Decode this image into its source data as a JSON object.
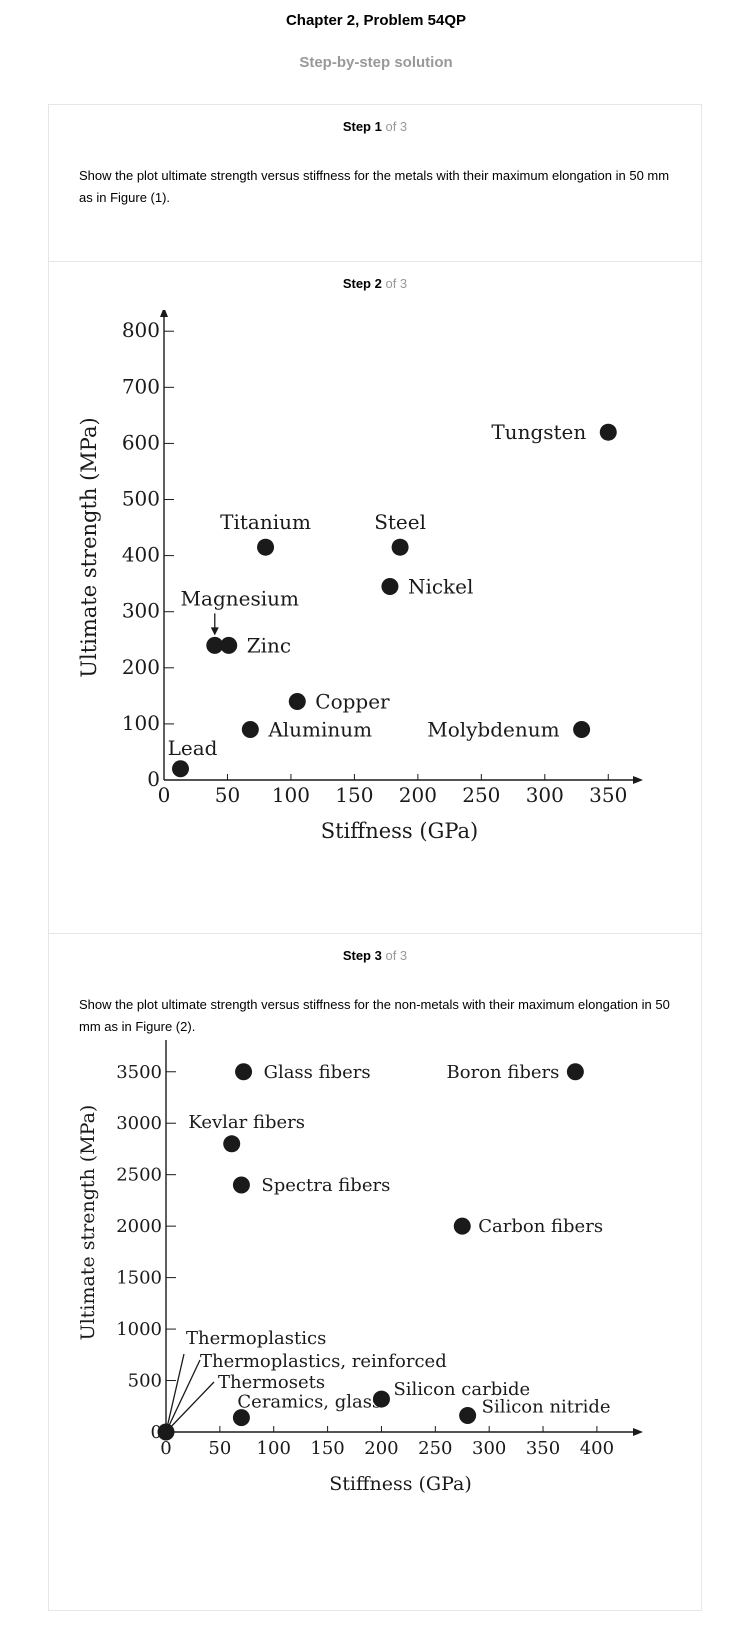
{
  "header": {
    "title": "Chapter 2, Problem 54QP",
    "subtitle": "Step-by-step solution"
  },
  "steps": [
    {
      "label": "Step 1",
      "of": "of 3",
      "text": "Show the plot ultimate strength versus stiffness for the metals with their maximum elongation in 50 mm as in Figure (1)."
    },
    {
      "label": "Step 2",
      "of": "of 3"
    },
    {
      "label": "Step 3",
      "of": "of 3",
      "text": "Show the plot ultimate strength versus stiffness for the non-metals with their maximum elongation in 50 mm as in Figure (2)."
    }
  ],
  "chart_data": [
    {
      "type": "scatter",
      "title": "",
      "xlabel": "Stiffness (GPa)",
      "ylabel": "Ultimate strength (MPa)",
      "xlim": [
        0,
        375
      ],
      "ylim": [
        0,
        820
      ],
      "xticks": [
        0,
        50,
        100,
        150,
        200,
        250,
        300,
        350
      ],
      "yticks": [
        0,
        100,
        200,
        300,
        400,
        500,
        600,
        700,
        800
      ],
      "grid": false,
      "points": [
        {
          "label": "Lead",
          "x": 13,
          "y": 20
        },
        {
          "label": "Aluminum",
          "x": 68,
          "y": 90
        },
        {
          "label": "Copper",
          "x": 105,
          "y": 140
        },
        {
          "label": "Magnesium",
          "x": 40,
          "y": 240
        },
        {
          "label": "Zinc",
          "x": 51,
          "y": 240
        },
        {
          "label": "Titanium",
          "x": 80,
          "y": 415
        },
        {
          "label": "Steel",
          "x": 186,
          "y": 415
        },
        {
          "label": "Nickel",
          "x": 178,
          "y": 345
        },
        {
          "label": "Molybdenum",
          "x": 329,
          "y": 90
        },
        {
          "label": "Tungsten",
          "x": 350,
          "y": 620
        }
      ]
    },
    {
      "type": "scatter",
      "title": "",
      "xlabel": "Stiffness (GPa)",
      "ylabel": "Ultimate strength (MPa)",
      "xlim": [
        0,
        440
      ],
      "ylim": [
        0,
        4100
      ],
      "xticks": [
        0,
        50,
        100,
        150,
        200,
        250,
        300,
        350,
        400
      ],
      "yticks": [
        0,
        500,
        1000,
        1500,
        2000,
        2500,
        3000,
        3500
      ],
      "grid": false,
      "points": [
        {
          "label": "Glass fibers",
          "x": 72,
          "y": 3500
        },
        {
          "label": "Boron fibers",
          "x": 380,
          "y": 3500
        },
        {
          "label": "Kevlar fibers",
          "x": 61,
          "y": 2800
        },
        {
          "label": "Spectra fibers",
          "x": 70,
          "y": 2400
        },
        {
          "label": "Carbon fibers",
          "x": 275,
          "y": 2000
        },
        {
          "label": "Silicon carbide",
          "x": 200,
          "y": 320
        },
        {
          "label": "Silicon nitride",
          "x": 280,
          "y": 160
        },
        {
          "label": "Ceramics, glass",
          "x": 70,
          "y": 140
        },
        {
          "label": "Thermoplastics",
          "x": 0,
          "y": 0
        },
        {
          "label": "Thermoplastics, reinforced",
          "x": 0,
          "y": 0
        },
        {
          "label": "Thermosets",
          "x": 0,
          "y": 0
        }
      ]
    }
  ]
}
